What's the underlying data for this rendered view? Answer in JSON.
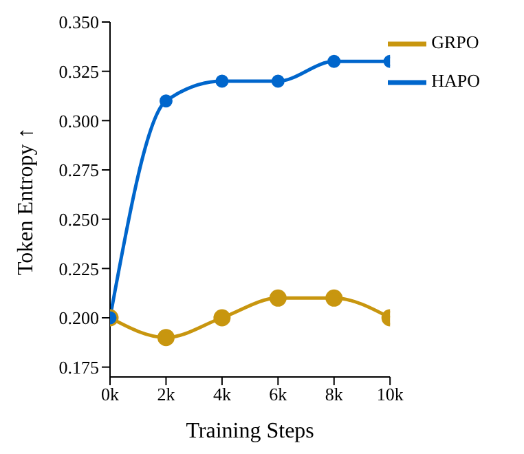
{
  "chart_data": {
    "type": "line",
    "xlabel": "Training Steps",
    "ylabel": "Token Entropy ↑",
    "x": [
      0,
      2000,
      4000,
      6000,
      8000,
      10000
    ],
    "series": [
      {
        "name": "GRPO",
        "color": "#c8960f",
        "values": [
          0.2,
          0.19,
          0.2,
          0.21,
          0.21,
          0.2
        ]
      },
      {
        "name": "HAPO",
        "color": "#0066cc",
        "values": [
          0.2,
          0.31,
          0.32,
          0.32,
          0.33,
          0.33
        ]
      }
    ],
    "xlim": [
      0,
      10000
    ],
    "xticks": [
      {
        "value": 0,
        "label": "0k"
      },
      {
        "value": 2000,
        "label": "2k"
      },
      {
        "value": 4000,
        "label": "4k"
      },
      {
        "value": 6000,
        "label": "6k"
      },
      {
        "value": 8000,
        "label": "8k"
      },
      {
        "value": 10000,
        "label": "10k"
      }
    ],
    "ylim": [
      0.17,
      0.35
    ],
    "yticks": [
      {
        "value": 0.175,
        "label": "0.175"
      },
      {
        "value": 0.2,
        "label": "0.200"
      },
      {
        "value": 0.225,
        "label": "0.225"
      },
      {
        "value": 0.25,
        "label": "0.250"
      },
      {
        "value": 0.275,
        "label": "0.275"
      },
      {
        "value": 0.3,
        "label": "0.300"
      },
      {
        "value": 0.325,
        "label": "0.325"
      },
      {
        "value": 0.35,
        "label": "0.350"
      }
    ],
    "grid": false,
    "legend": "top right",
    "marker": "circle",
    "line_style": "solid"
  }
}
